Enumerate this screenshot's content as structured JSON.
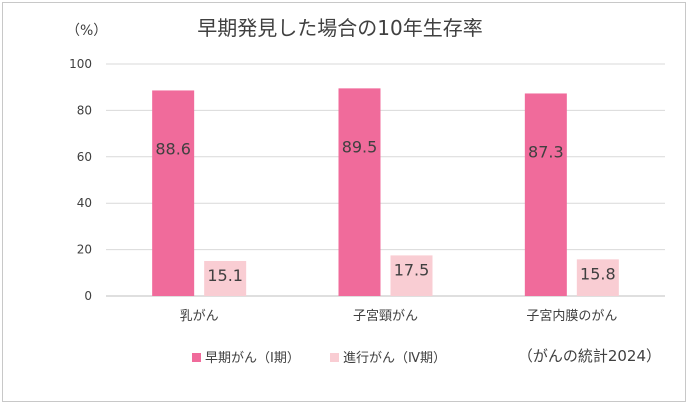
{
  "chart_data": {
    "type": "bar",
    "title": "早期発見した場合の10年生存率",
    "unit_label": "（%）",
    "source_note": "（がんの統計2024）",
    "categories": [
      "乳がん",
      "子宮頸がん",
      "子宮内膜のがん"
    ],
    "y_ticks": [
      "0",
      "20",
      "40",
      "60",
      "80",
      "100"
    ],
    "ylim": [
      0,
      100
    ],
    "grid": true,
    "legend_position": "bottom",
    "series": [
      {
        "name": "早期がん（Ⅰ期）",
        "values": [
          88.6,
          89.5,
          87.3
        ],
        "labels": [
          "88.6",
          "89.5",
          "87.3"
        ],
        "color": "#f06b9b"
      },
      {
        "name": "進行がん（Ⅳ期）",
        "values": [
          15.1,
          17.5,
          15.8
        ],
        "labels": [
          "15.1",
          "17.5",
          "15.8"
        ],
        "color": "#f9cdd3"
      }
    ]
  }
}
